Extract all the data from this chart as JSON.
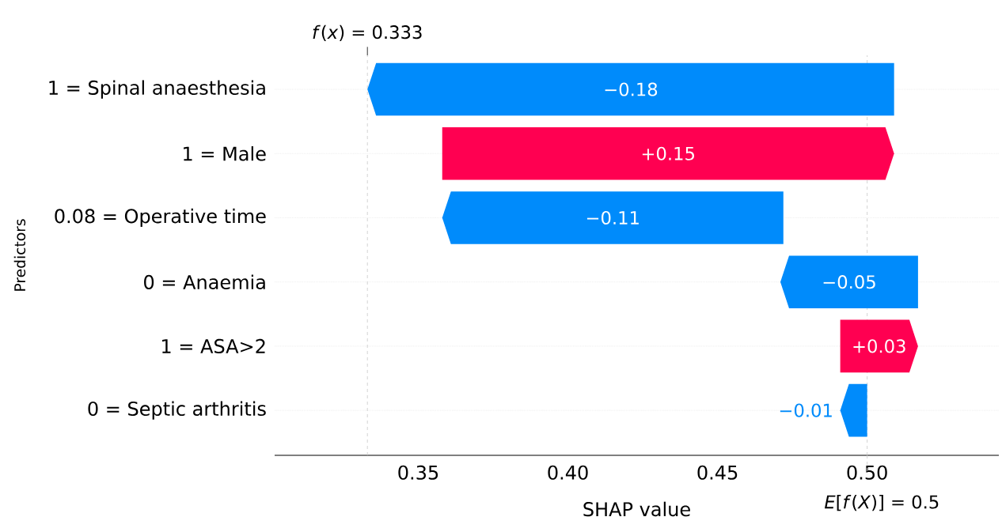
{
  "chart_data": {
    "type": "bar",
    "orientation": "horizontal",
    "xlabel": "SHAP value",
    "ylabel": "Predictors",
    "categories": [
      "1 = Spinal anaesthesia",
      "1 = Male",
      "0.08 = Operative time",
      "0 = Anaemia",
      "1 = ASA>2",
      "0 = Septic arthritis"
    ],
    "base": [
      0.509,
      0.358,
      0.472,
      0.517,
      0.491,
      0.5
    ],
    "values": [
      -0.176,
      0.151,
      -0.114,
      -0.046,
      0.026,
      -0.009
    ],
    "colors": [
      "#008bfb",
      "#ff0051",
      "#008bfb",
      "#008bfb",
      "#ff0051",
      "#008bfb"
    ],
    "value_labels": [
      "−0.18",
      "+0.15",
      "−0.11",
      "−0.05",
      "+0.03",
      "−0.01"
    ],
    "xlim": [
      0.302,
      0.544
    ],
    "xticks": [
      {
        "value": 0.35,
        "label": "0.35"
      },
      {
        "value": 0.4,
        "label": "0.40"
      },
      {
        "value": 0.45,
        "label": "0.45"
      },
      {
        "value": 0.5,
        "label": "0.50"
      }
    ],
    "grid": "y",
    "ref_lines": [
      {
        "axis": "x",
        "value": 0.333,
        "label": "*f*(*x*) = 0.333",
        "color": "#c8c8c8",
        "line_style": "dashed"
      },
      {
        "axis": "x",
        "value": 0.5,
        "label": "*E*[*f*(*X*)] = 0.5",
        "color": "#c8c8c8",
        "line_style": "dashed"
      }
    ]
  }
}
